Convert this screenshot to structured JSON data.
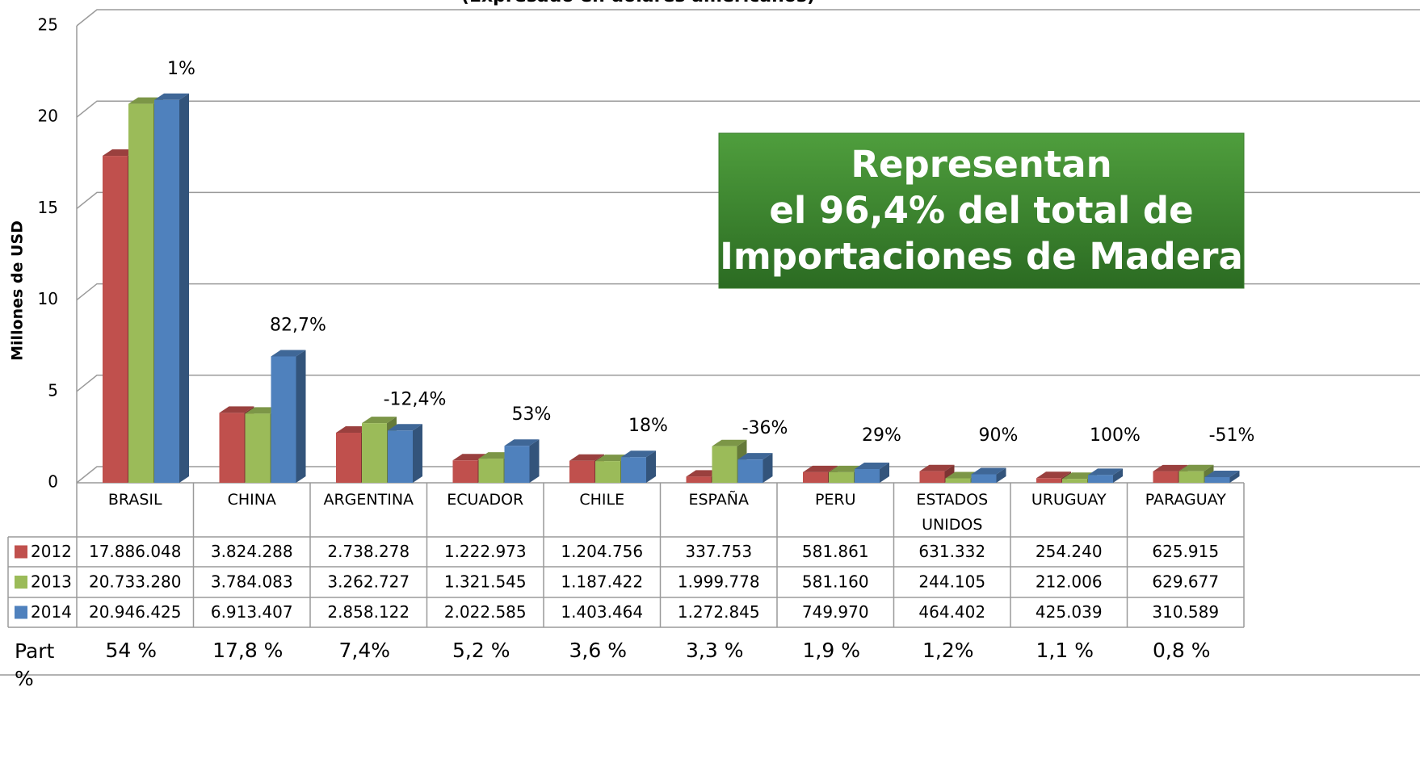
{
  "chart_data": {
    "type": "bar3d",
    "subtitle": "(Expresado en dólares americanos)",
    "y_label": "Millones de USD",
    "categories": [
      "BRASIL",
      "CHINA",
      "ARGENTINA",
      "ECUADOR",
      "CHILE",
      "ESPAÑA",
      "PERU",
      "ESTADOS UNIDOS",
      "URUGUAY",
      "PARAGUAY"
    ],
    "series": [
      {
        "name": "2012",
        "color": "#c0504d",
        "values": [
          17.886048,
          3.824288,
          2.738278,
          1.222973,
          1.204756,
          0.337753,
          0.581861,
          0.631332,
          0.25424,
          0.625915
        ],
        "value_labels": [
          "17.886.048",
          "3.824.288",
          "2.738.278",
          "1.222.973",
          "1.204.756",
          "337.753",
          "581.861",
          "631.332",
          "254.240",
          "625.915"
        ]
      },
      {
        "name": "2013",
        "color": "#9bbb59",
        "values": [
          20.73328,
          3.784083,
          3.262727,
          1.321545,
          1.187422,
          1.999778,
          0.58116,
          0.244105,
          0.212006,
          0.629677
        ],
        "value_labels": [
          "20.733.280",
          "3.784.083",
          "3.262.727",
          "1.321.545",
          "1.187.422",
          "1.999.778",
          "581.160",
          "244.105",
          "212.006",
          "629.677"
        ]
      },
      {
        "name": "2014",
        "color": "#4f81bd",
        "values": [
          20.946425,
          6.913407,
          2.858122,
          2.022585,
          1.403464,
          1.272845,
          0.74997,
          0.464402,
          0.425039,
          0.310589
        ],
        "value_labels": [
          "20.946.425",
          "6.913.407",
          "2.858.122",
          "2.022.585",
          "1.403.464",
          "1.272.845",
          "749.970",
          "464.402",
          "425.039",
          "310.589"
        ]
      }
    ],
    "growth_labels": [
      "1%",
      "82,7%",
      "-12,4%",
      "53%",
      "18%",
      "-36%",
      "29%",
      "90%",
      "100%",
      "-51%"
    ],
    "share_row": {
      "label": "Part %",
      "values": [
        "54 %",
        "17,8 %",
        "7,4%",
        "5,2 %",
        "3,6 %",
        "3,3 %",
        "1,9 %",
        "1,2%",
        "1,1 %",
        "0,8 %"
      ]
    },
    "callout": [
      "Representan",
      "el 96,4% del total de",
      "Importaciones de Madera"
    ],
    "ylim": [
      0,
      25
    ],
    "yticks": [
      0,
      5,
      10,
      15,
      20,
      25
    ],
    "grid": true
  }
}
